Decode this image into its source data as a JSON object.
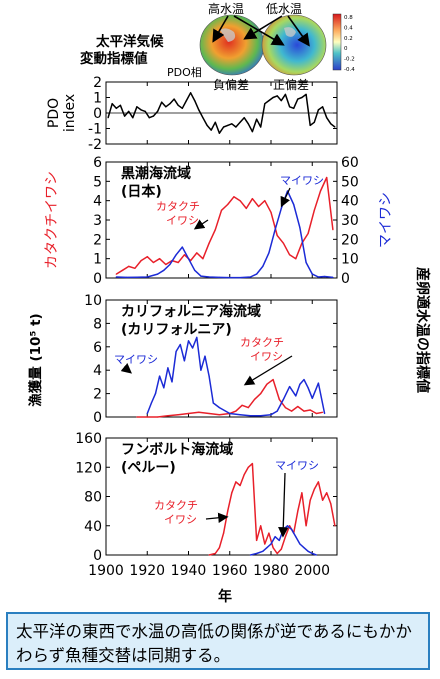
{
  "pdo_header": {
    "title_line1": "太平洋気候",
    "title_line2": "変動指標値",
    "warm_label": "高水温",
    "cold_label": "低水温",
    "phase_label": "PDO相",
    "neg_label": "負偏差",
    "pos_label": "正偏差",
    "colorbar_ticks": [
      "0.8",
      "0.4",
      "0.2",
      "0",
      "-0.2",
      "-0.4"
    ]
  },
  "y_axis_common_label": "漁獲量 (10⁵ t)",
  "right_axis_label": "産卵適水温の指標値",
  "x_axis_label": "年",
  "caption": "太平洋の東西で水温の高低の関係が逆であるにもかかわらず魚種交替は同期する。",
  "colors": {
    "anchovy": "#e8202a",
    "sardine": "#1c2bd6",
    "pdo": "#000000"
  },
  "chart_data": [
    {
      "type": "line",
      "panel": "pdo",
      "ylabel": "PDO index",
      "ylim": [
        -2,
        2
      ],
      "yticks": [
        "2",
        "1",
        "0",
        "-1",
        "-2"
      ],
      "xlim": [
        1900,
        2012
      ],
      "series": [
        {
          "name": "PDO",
          "x": [
            1901,
            1903,
            1905,
            1907,
            1909,
            1911,
            1913,
            1915,
            1917,
            1919,
            1921,
            1923,
            1925,
            1927,
            1929,
            1931,
            1933,
            1935,
            1937,
            1939,
            1941,
            1943,
            1945,
            1947,
            1949,
            1951,
            1953,
            1955,
            1957,
            1959,
            1961,
            1963,
            1965,
            1967,
            1969,
            1971,
            1973,
            1975,
            1977,
            1979,
            1981,
            1983,
            1985,
            1987,
            1989,
            1991,
            1993,
            1995,
            1997,
            1999,
            2001,
            2003,
            2005,
            2007,
            2009,
            2011
          ],
          "values": [
            -0.3,
            0.6,
            0.3,
            0.5,
            -0.2,
            0.1,
            -0.3,
            0.4,
            0.2,
            0.1,
            -0.3,
            -0.2,
            0.1,
            0.7,
            0.4,
            0.6,
            0.9,
            0.5,
            0.3,
            0.8,
            1.3,
            0.8,
            0.2,
            -0.3,
            -0.8,
            -1.1,
            -0.6,
            -1.3,
            -0.9,
            -0.8,
            -0.7,
            -0.9,
            -0.6,
            -0.3,
            -0.7,
            -1.2,
            -0.4,
            -0.9,
            0.6,
            0.8,
            1.0,
            1.1,
            0.8,
            1.2,
            0.4,
            0.3,
            0.9,
            1.0,
            1.2,
            -0.8,
            -0.6,
            0.2,
            0.4,
            -0.3,
            -0.7,
            -0.9
          ]
        }
      ]
    },
    {
      "type": "line",
      "panel": "kuroshio",
      "title_line1": "黒潮海流域",
      "title_line2": "(日本)",
      "ylim": [
        0,
        6
      ],
      "yticks": [
        "6",
        "5",
        "4",
        "3",
        "2",
        "1",
        "0"
      ],
      "ylim_right": [
        0,
        60
      ],
      "yticks_right": [
        "60",
        "50",
        "40",
        "30",
        "20",
        "10",
        "0"
      ],
      "ylabel_left": "カタクチイワシ",
      "ylabel_right": "マイワシ",
      "xlim": [
        1900,
        2012
      ],
      "annotations": [
        {
          "text_line1": "カタクチ",
          "text_line2": "イワシ",
          "series": "anchovy"
        },
        {
          "text": "マイワシ",
          "series": "sardine"
        }
      ],
      "series": [
        {
          "name": "カタクチイワシ",
          "x": [
            1905,
            1908,
            1911,
            1914,
            1917,
            1920,
            1923,
            1926,
            1929,
            1932,
            1935,
            1938,
            1941,
            1944,
            1947,
            1950,
            1953,
            1956,
            1959,
            1962,
            1965,
            1968,
            1971,
            1974,
            1977,
            1980,
            1983,
            1986,
            1989,
            1992,
            1995,
            1998,
            2001,
            2004,
            2007,
            2010
          ],
          "values": [
            0.2,
            0.4,
            0.6,
            0.5,
            0.9,
            1.1,
            0.8,
            1.0,
            0.7,
            0.9,
            0.8,
            1.2,
            0.9,
            1.3,
            1.0,
            1.8,
            2.5,
            3.5,
            3.8,
            4.2,
            4.0,
            3.6,
            4.1,
            3.7,
            4.0,
            3.4,
            2.2,
            1.8,
            1.2,
            1.0,
            1.8,
            2.3,
            3.5,
            4.5,
            5.2,
            2.5
          ]
        },
        {
          "name": "マイワシ",
          "x": [
            1905,
            1910,
            1915,
            1920,
            1925,
            1928,
            1931,
            1934,
            1937,
            1940,
            1943,
            1946,
            1950,
            1955,
            1960,
            1965,
            1970,
            1973,
            1976,
            1979,
            1982,
            1985,
            1988,
            1991,
            1994,
            1997,
            2000,
            2003,
            2006,
            2010
          ],
          "values": [
            0.5,
            0.3,
            0.4,
            0.5,
            2,
            4,
            7,
            12,
            16,
            10,
            4,
            1,
            0.5,
            0.3,
            0.2,
            0.2,
            0.5,
            2,
            6,
            13,
            25,
            36,
            45,
            38,
            26,
            8,
            2,
            0.5,
            0.8,
            0.3
          ]
        }
      ]
    },
    {
      "type": "line",
      "panel": "california",
      "title_line1": "カリフォルニア海流域",
      "title_line2": "(カリフォルニア)",
      "ylim": [
        0,
        10
      ],
      "yticks": [
        "10",
        "8",
        "6",
        "4",
        "2",
        "0"
      ],
      "xlim": [
        1900,
        2012
      ],
      "annotations": [
        {
          "text": "マイワシ",
          "series": "sardine"
        },
        {
          "text_line1": "カタクチ",
          "text_line2": "イワシ",
          "series": "anchovy"
        }
      ],
      "series": [
        {
          "name": "カタクチイワシ",
          "x": [
            1915,
            1920,
            1925,
            1930,
            1935,
            1940,
            1945,
            1950,
            1955,
            1960,
            1963,
            1966,
            1969,
            1972,
            1975,
            1978,
            1981,
            1984,
            1987,
            1990,
            1993,
            1996,
            1999,
            2002,
            2005
          ],
          "values": [
            0,
            0,
            0,
            0.1,
            0.2,
            0.3,
            0.4,
            0.3,
            0.2,
            0.3,
            0.5,
            1.0,
            0.8,
            1.5,
            2.0,
            2.8,
            3.2,
            1.5,
            0.8,
            0.5,
            0.9,
            0.5,
            0.6,
            0.3,
            0.4
          ]
        },
        {
          "name": "マイワシ",
          "x": [
            1920,
            1922,
            1924,
            1926,
            1928,
            1930,
            1932,
            1934,
            1936,
            1938,
            1940,
            1942,
            1944,
            1946,
            1948,
            1950,
            1952,
            1955,
            1960,
            1965,
            1970,
            1975,
            1980,
            1983,
            1986,
            1989,
            1992,
            1994,
            1996,
            1998,
            2000,
            2003,
            2006
          ],
          "values": [
            0.3,
            1.2,
            2.0,
            3.5,
            2.5,
            4.2,
            3.0,
            5.6,
            6.2,
            4.8,
            6.5,
            5.9,
            6.8,
            4.0,
            5.2,
            3.5,
            1.2,
            0.8,
            0.3,
            0.2,
            0.1,
            0.1,
            0.2,
            0.5,
            1.5,
            2.6,
            1.8,
            2.8,
            3.2,
            2.5,
            1.6,
            2.9,
            0.3
          ]
        }
      ]
    },
    {
      "type": "line",
      "panel": "humboldt",
      "title_line1": "フンボルト海流域",
      "title_line2": "(ペルー)",
      "ylim": [
        0,
        160
      ],
      "yticks": [
        "160",
        "120",
        "80",
        "40",
        "0"
      ],
      "xlim": [
        1900,
        2012
      ],
      "xticks": [
        "1900",
        "1920",
        "1940",
        "1960",
        "1980",
        "2000"
      ],
      "annotations": [
        {
          "text_line1": "カタクチ",
          "text_line2": "イワシ",
          "series": "anchovy"
        },
        {
          "text": "マイワシ",
          "series": "sardine"
        }
      ],
      "series": [
        {
          "name": "カタクチイワシ",
          "x": [
            1950,
            1953,
            1955,
            1957,
            1959,
            1961,
            1963,
            1965,
            1967,
            1969,
            1971,
            1973,
            1975,
            1977,
            1979,
            1981,
            1983,
            1985,
            1987,
            1989,
            1991,
            1993,
            1995,
            1997,
            1999,
            2001,
            2003,
            2005,
            2007,
            2009,
            2011
          ],
          "values": [
            0,
            2,
            10,
            30,
            60,
            85,
            100,
            95,
            110,
            120,
            125,
            20,
            40,
            15,
            30,
            10,
            2,
            8,
            25,
            40,
            30,
            60,
            85,
            40,
            75,
            90,
            100,
            75,
            85,
            70,
            40
          ]
        },
        {
          "name": "マイワシ",
          "x": [
            1970,
            1973,
            1976,
            1978,
            1980,
            1982,
            1984,
            1986,
            1988,
            1990,
            1992,
            1994,
            1996,
            1998,
            2000,
            2002
          ],
          "values": [
            0,
            2,
            5,
            10,
            15,
            25,
            20,
            35,
            40,
            35,
            25,
            15,
            10,
            5,
            2,
            0
          ]
        }
      ]
    }
  ]
}
